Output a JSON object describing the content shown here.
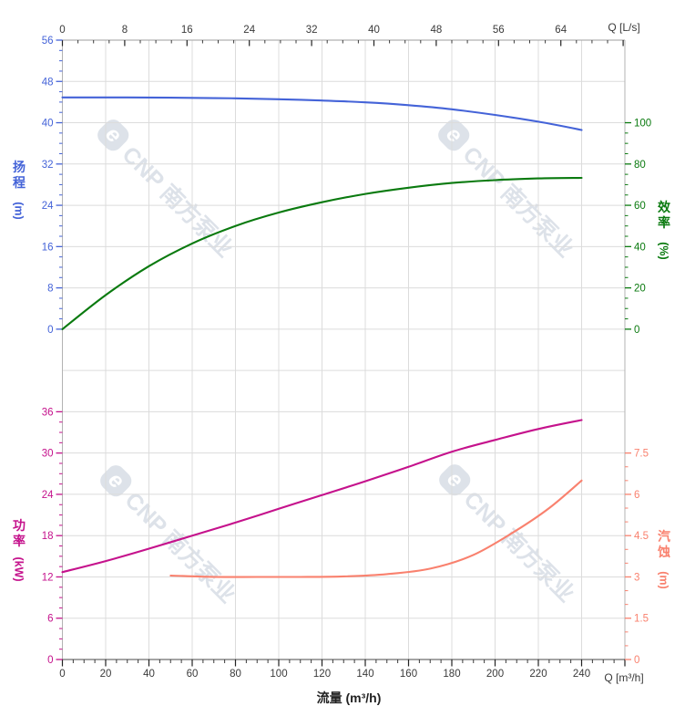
{
  "watermark": {
    "logo_glyph": "e",
    "brand": "CNP 南方泵业"
  },
  "chart_data": [
    {
      "id": "head-efficiency",
      "type": "line",
      "x_axis": {
        "position": "top",
        "title": "Q [L/s]",
        "unit": "L/s",
        "major_ticks": [
          0,
          8,
          16,
          24,
          32,
          40,
          48,
          56,
          64,
          72
        ],
        "tick_labels": [
          "0",
          "8",
          "16",
          "24",
          "32",
          "40",
          "48",
          "56",
          "64",
          ""
        ],
        "minor_step": 2,
        "range": [
          0,
          72
        ],
        "grid": true
      },
      "y_left": {
        "title": "扬程",
        "unit": "(m)",
        "color": "#4463d8",
        "major_ticks": [
          0,
          8,
          16,
          24,
          32,
          40,
          48,
          56
        ],
        "tick_labels": [
          "0",
          "8",
          "16",
          "24",
          "32",
          "40",
          "48",
          "56"
        ],
        "minor_step": 2,
        "range": [
          0,
          56
        ]
      },
      "y_right": {
        "title": "效率",
        "unit": "(%)",
        "color": "#0a7a0f",
        "major_ticks": [
          0,
          20,
          40,
          60,
          80,
          100
        ],
        "tick_labels": [
          "0",
          "20",
          "40",
          "60",
          "80",
          "100"
        ],
        "minor_step": 5,
        "range": [
          0,
          100
        ]
      },
      "series": [
        {
          "name": "head",
          "label": "扬程",
          "axis": "y_left",
          "color": "#4463d8",
          "points": [
            [
              0,
              44.9
            ],
            [
              20,
              44.9
            ],
            [
              40,
              44.88
            ],
            [
              60,
              44.82
            ],
            [
              80,
              44.72
            ],
            [
              100,
              44.55
            ],
            [
              120,
              44.3
            ],
            [
              140,
              43.95
            ],
            [
              160,
              43.4
            ],
            [
              180,
              42.6
            ],
            [
              200,
              41.5
            ],
            [
              220,
              40.2
            ],
            [
              240,
              38.6
            ]
          ]
        },
        {
          "name": "efficiency",
          "label": "效率",
          "axis": "y_right",
          "color": "#0a7a0f",
          "points": [
            [
              0,
              0
            ],
            [
              20,
              16.5
            ],
            [
              40,
              30.5
            ],
            [
              60,
              41.5
            ],
            [
              80,
              50
            ],
            [
              100,
              56.5
            ],
            [
              120,
              61.5
            ],
            [
              140,
              65.5
            ],
            [
              160,
              68.5
            ],
            [
              180,
              70.8
            ],
            [
              200,
              72.2
            ],
            [
              220,
              73
            ],
            [
              240,
              73.3
            ]
          ]
        }
      ]
    },
    {
      "id": "power-npsh",
      "type": "line",
      "x_axis": {
        "position": "bottom",
        "title": "Q [m³/h]",
        "axis_label": "流量 (m³/h)",
        "unit": "m³/h",
        "major_ticks": [
          0,
          20,
          40,
          60,
          80,
          100,
          120,
          140,
          160,
          180,
          200,
          220,
          240,
          260
        ],
        "tick_labels": [
          "0",
          "20",
          "40",
          "60",
          "80",
          "100",
          "120",
          "140",
          "160",
          "180",
          "200",
          "220",
          "240",
          ""
        ],
        "minor_step": 5,
        "range": [
          0,
          260
        ],
        "grid": true
      },
      "y_left": {
        "title": "功率",
        "unit": "(kW)",
        "color": "#c5128c",
        "major_ticks": [
          0,
          6,
          12,
          18,
          24,
          30,
          36
        ],
        "tick_labels": [
          "0",
          "6",
          "12",
          "18",
          "24",
          "30",
          "36"
        ],
        "minor_step": 1.5,
        "range": [
          0,
          36
        ]
      },
      "y_right": {
        "title": "汽蚀",
        "unit": "(m)",
        "color": "#f9816e",
        "major_ticks": [
          0,
          1.5,
          3,
          4.5,
          6,
          7.5
        ],
        "tick_labels": [
          "0",
          "1.5",
          "3",
          "4.5",
          "6",
          "7.5"
        ],
        "minor_step": 0.5,
        "range": [
          0,
          7.5
        ]
      },
      "series": [
        {
          "name": "power",
          "label": "功率",
          "axis": "y_left",
          "color": "#c5128c",
          "points": [
            [
              0,
              12.7
            ],
            [
              20,
              14.3
            ],
            [
              40,
              16.1
            ],
            [
              60,
              18
            ],
            [
              80,
              19.9
            ],
            [
              100,
              21.9
            ],
            [
              120,
              23.9
            ],
            [
              140,
              25.9
            ],
            [
              160,
              28
            ],
            [
              180,
              30.2
            ],
            [
              200,
              31.9
            ],
            [
              220,
              33.5
            ],
            [
              240,
              34.8
            ]
          ]
        },
        {
          "name": "npsh",
          "label": "汽蚀",
          "axis": "y_right",
          "color": "#f9816e",
          "points": [
            [
              50,
              3.05
            ],
            [
              70,
              3
            ],
            [
              90,
              3
            ],
            [
              110,
              3
            ],
            [
              130,
              3.02
            ],
            [
              150,
              3.1
            ],
            [
              170,
              3.3
            ],
            [
              190,
              3.8
            ],
            [
              210,
              4.7
            ],
            [
              225,
              5.5
            ],
            [
              240,
              6.5
            ]
          ]
        }
      ]
    }
  ]
}
